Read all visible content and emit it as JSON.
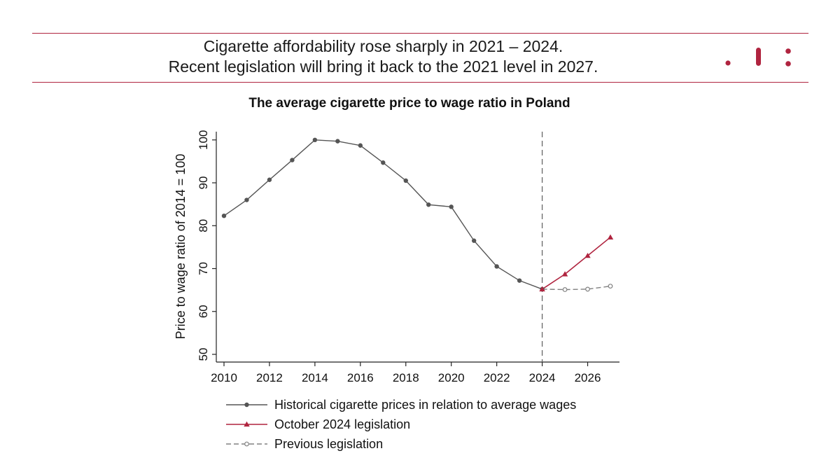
{
  "headline": {
    "line1": "Cigarette affordability rose sharply in 2021 – 2024.",
    "line2": "Recent legislation will bring it back to the 2021 level in 2027."
  },
  "colors": {
    "accent": "#b0243f",
    "historical": "#555555",
    "previous": "#808080"
  },
  "chart_data": {
    "type": "line",
    "title": "The average cigarette price to wage ratio in Poland",
    "xlabel": "",
    "ylabel": "Price to wage ratio of 2014 = 100",
    "xlim": [
      2010,
      2027
    ],
    "ylim": [
      50,
      100
    ],
    "x_ticks": [
      2010,
      2012,
      2014,
      2016,
      2018,
      2020,
      2022,
      2024,
      2026
    ],
    "y_ticks": [
      50,
      60,
      70,
      80,
      90,
      100
    ],
    "vertical_reference_line": 2024,
    "grid": false,
    "legend_position": "bottom",
    "series": [
      {
        "name": "Historical cigarette prices in relation to average wages",
        "marker": "filled-circle",
        "style": "solid",
        "x": [
          2010,
          2011,
          2012,
          2013,
          2014,
          2015,
          2016,
          2017,
          2018,
          2019,
          2020,
          2021,
          2022,
          2023,
          2024
        ],
        "y": [
          82.3,
          86.0,
          90.7,
          95.3,
          100.0,
          99.7,
          98.7,
          94.7,
          90.5,
          84.9,
          84.4,
          76.5,
          70.5,
          67.2,
          65.2
        ]
      },
      {
        "name": "October 2024 legislation",
        "marker": "filled-triangle",
        "style": "solid",
        "x": [
          2024,
          2025,
          2026,
          2027
        ],
        "y": [
          65.2,
          68.7,
          73.0,
          77.3
        ]
      },
      {
        "name": "Previous legislation",
        "marker": "hollow-circle",
        "style": "dashed",
        "x": [
          2024,
          2025,
          2026,
          2027
        ],
        "y": [
          65.2,
          65.1,
          65.2,
          65.9
        ]
      }
    ]
  }
}
